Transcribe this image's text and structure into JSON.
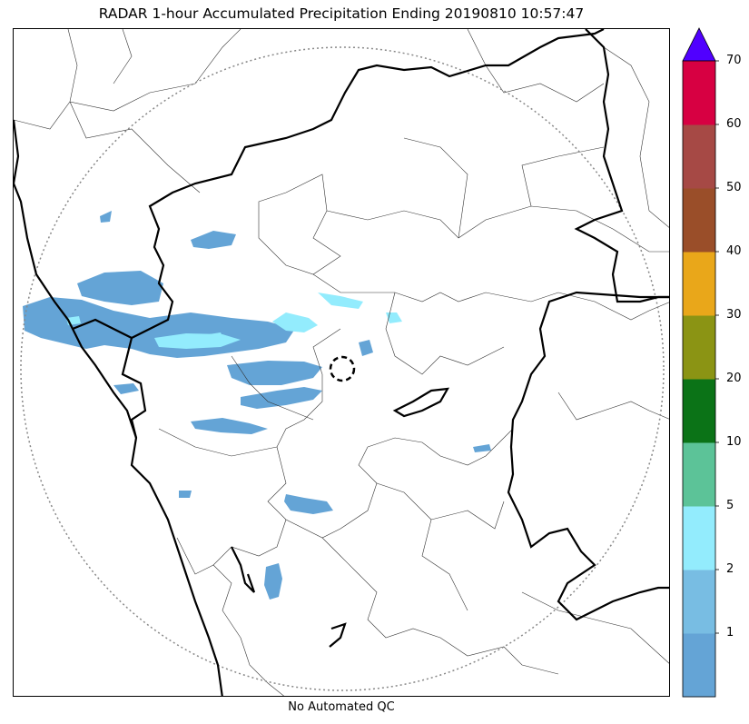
{
  "title": "RADAR 1-hour Accumulated Precipitation Ending 20190810 10:57:47",
  "footer": "No Automated QC",
  "colorbar": {
    "bins": [
      {
        "label": "",
        "color": "#64a4d6"
      },
      {
        "label": "1",
        "color": "#78bde3"
      },
      {
        "label": "2",
        "color": "#93ecfd"
      },
      {
        "label": "5",
        "color": "#5cc398"
      },
      {
        "label": "10",
        "color": "#0b7317"
      },
      {
        "label": "20",
        "color": "#8b9414"
      },
      {
        "label": "30",
        "color": "#e9a71a"
      },
      {
        "label": "40",
        "color": "#9a4e29"
      },
      {
        "label": "50",
        "color": "#a64945"
      },
      {
        "label": "60",
        "color": "#d70042"
      }
    ],
    "top_label": "70",
    "extend_color": "#5000ff"
  },
  "map": {
    "radar_range_color": "#888888",
    "boundary_color": "#000000",
    "precip_main_color": "#64a4d6",
    "precip_light_color": "#93ecfd"
  }
}
